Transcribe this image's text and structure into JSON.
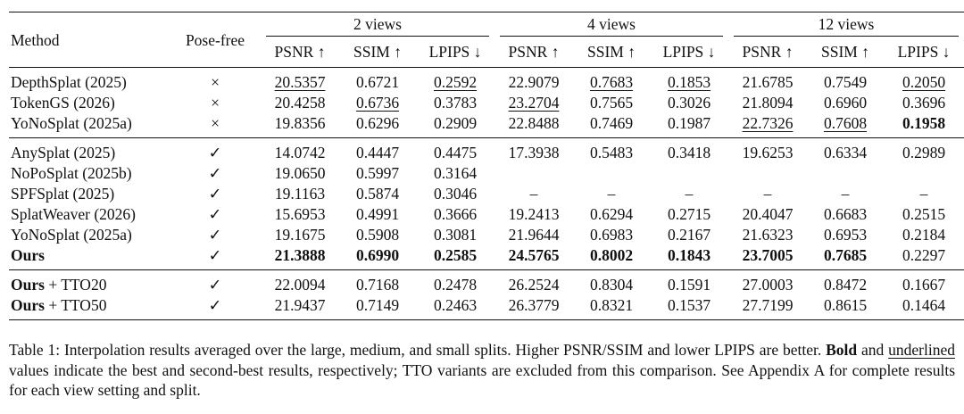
{
  "table": {
    "header": {
      "method": "Method",
      "pose_free": "Pose-free",
      "groups": [
        "2 views",
        "4 views",
        "12 views"
      ],
      "metrics": [
        "PSNR ↑",
        "SSIM ↑",
        "LPIPS ↓"
      ]
    },
    "sections": [
      {
        "rows": [
          {
            "method": "DepthSplat (2025)",
            "pose_free": "×",
            "values": [
              "20.5357",
              "0.6721",
              "0.2592",
              "22.9079",
              "0.7683",
              "0.1853",
              "21.6785",
              "0.7549",
              "0.2050"
            ],
            "emphasis": [
              "u",
              "",
              "u",
              "",
              "u",
              "u",
              "",
              "",
              "u"
            ]
          },
          {
            "method": "TokenGS (2026)",
            "pose_free": "×",
            "values": [
              "20.4258",
              "0.6736",
              "0.3783",
              "23.2704",
              "0.7565",
              "0.3026",
              "21.8094",
              "0.6960",
              "0.3696"
            ],
            "emphasis": [
              "",
              "u",
              "",
              "u",
              "",
              "",
              "",
              "",
              ""
            ]
          },
          {
            "method": "YoNoSplat (2025a)",
            "pose_free": "×",
            "values": [
              "19.8356",
              "0.6296",
              "0.2909",
              "22.8488",
              "0.7469",
              "0.1987",
              "22.7326",
              "0.7608",
              "0.1958"
            ],
            "emphasis": [
              "",
              "",
              "",
              "",
              "",
              "",
              "u",
              "u",
              "b"
            ]
          }
        ]
      },
      {
        "rows": [
          {
            "method": "AnySplat (2025)",
            "pose_free": "✓",
            "values": [
              "14.0742",
              "0.4447",
              "0.4475",
              "17.3938",
              "0.5483",
              "0.3418",
              "19.6253",
              "0.6334",
              "0.2989"
            ],
            "emphasis": [
              "",
              "",
              "",
              "",
              "",
              "",
              "",
              "",
              ""
            ]
          },
          {
            "method": "NoPoSplat (2025b)",
            "pose_free": "✓",
            "values": [
              "19.0650",
              "0.5997",
              "0.3164",
              "",
              "",
              "",
              "",
              "",
              ""
            ],
            "emphasis": [
              "",
              "",
              "",
              "",
              "",
              "",
              "",
              "",
              ""
            ]
          },
          {
            "method": "SPFSplat (2025)",
            "pose_free": "✓",
            "values": [
              "19.1163",
              "0.5874",
              "0.3046",
              "–",
              "–",
              "–",
              "–",
              "–",
              "–"
            ],
            "emphasis": [
              "",
              "",
              "",
              "",
              "",
              "",
              "",
              "",
              ""
            ]
          },
          {
            "method": "SplatWeaver (2026)",
            "pose_free": "✓",
            "values": [
              "15.6953",
              "0.4991",
              "0.3666",
              "19.2413",
              "0.6294",
              "0.2715",
              "20.4047",
              "0.6683",
              "0.2515"
            ],
            "emphasis": [
              "",
              "",
              "",
              "",
              "",
              "",
              "",
              "",
              ""
            ]
          },
          {
            "method": "YoNoSplat (2025a)",
            "pose_free": "✓",
            "values": [
              "19.1675",
              "0.5908",
              "0.3081",
              "21.9644",
              "0.6983",
              "0.2167",
              "21.6323",
              "0.6953",
              "0.2184"
            ],
            "emphasis": [
              "",
              "",
              "",
              "",
              "",
              "",
              "",
              "",
              ""
            ]
          },
          {
            "method": "Ours",
            "method_bold": true,
            "pose_free": "✓",
            "values": [
              "21.3888",
              "0.6990",
              "0.2585",
              "24.5765",
              "0.8002",
              "0.1843",
              "23.7005",
              "0.7685",
              "0.2297"
            ],
            "emphasis": [
              "b",
              "b",
              "b",
              "b",
              "b",
              "b",
              "b",
              "b",
              ""
            ]
          }
        ]
      },
      {
        "rows": [
          {
            "method": "Ours",
            "method_suffix": " + TTO20",
            "method_bold": true,
            "pose_free": "✓",
            "values": [
              "22.0094",
              "0.7168",
              "0.2478",
              "26.2524",
              "0.8304",
              "0.1591",
              "27.0003",
              "0.8472",
              "0.1667"
            ],
            "emphasis": [
              "",
              "",
              "",
              "",
              "",
              "",
              "",
              "",
              ""
            ]
          },
          {
            "method": "Ours",
            "method_suffix": " + TTO50",
            "method_bold": true,
            "pose_free": "✓",
            "values": [
              "21.9437",
              "0.7149",
              "0.2463",
              "26.3779",
              "0.8321",
              "0.1537",
              "27.7199",
              "0.8615",
              "0.1464"
            ],
            "emphasis": [
              "",
              "",
              "",
              "",
              "",
              "",
              "",
              "",
              ""
            ]
          }
        ]
      }
    ]
  },
  "caption": {
    "part1": "Table 1: Interpolation results averaged over the large, medium, and small splits. Higher PSNR/SSIM and lower LPIPS are better. ",
    "bold_word": "Bold",
    "part2": " and ",
    "underlined_word": "underlined",
    "part3": " values indicate the best and second-best results, respectively; TTO variants are excluded from this comparison. See Appendix A for complete results for each view setting and split."
  }
}
